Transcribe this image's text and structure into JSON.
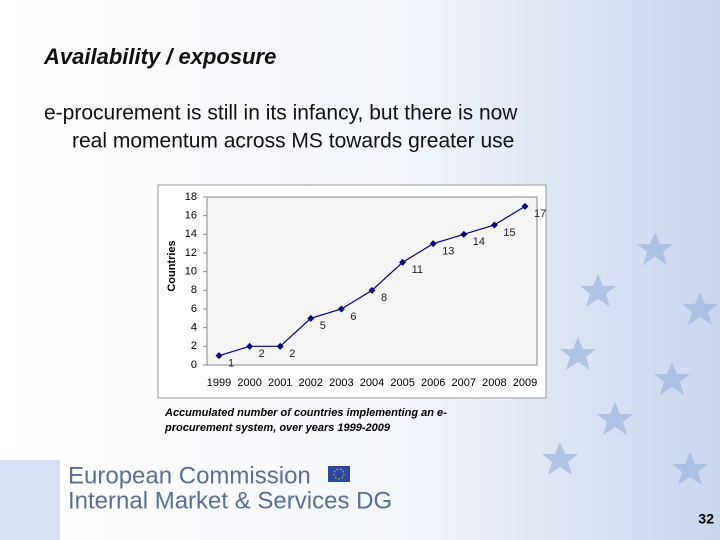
{
  "slide": {
    "title": "Availability / exposure",
    "body_line1": "e-procurement is still in its infancy, but there is now",
    "body_line2": "real momentum across MS towards greater use",
    "caption_line1": "Accumulated number of countries implementing an e-",
    "caption_line2": "procurement system, over years 1999-2009",
    "footer_line1": "European Commission",
    "footer_line2": "Internal Market & Services DG",
    "page_number": "32"
  },
  "chart_data": {
    "type": "line",
    "y_label": "Countries",
    "categories": [
      "1999",
      "2000",
      "2001",
      "2002",
      "2003",
      "2004",
      "2005",
      "2006",
      "2007",
      "2008",
      "2009"
    ],
    "values": [
      1,
      2,
      2,
      5,
      6,
      8,
      11,
      13,
      14,
      15,
      17
    ],
    "color": "#000080",
    "ylim": [
      0,
      18
    ],
    "yticks": [
      0,
      2,
      4,
      6,
      8,
      10,
      12,
      14,
      16,
      18
    ],
    "grid": false
  }
}
